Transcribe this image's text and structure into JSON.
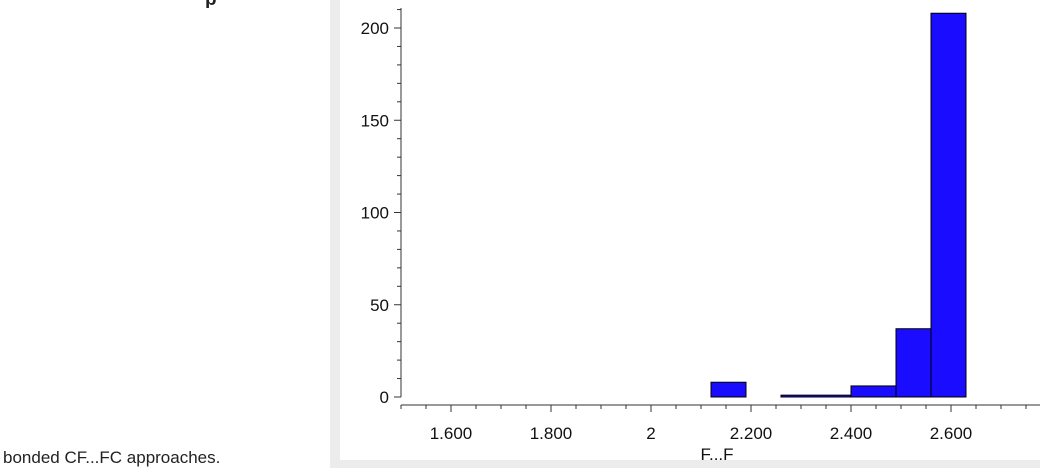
{
  "page": {
    "caption": "bonded CF...FC approaches.",
    "top_bold": "p",
    "top_mid": "(),",
    "top_right": ","
  },
  "colors": {
    "bar_fill": "#1a0dff",
    "bar_stroke": "#000000",
    "axis": "#333333"
  },
  "chart_data": {
    "type": "bar",
    "xlabel": "F...F",
    "ylabel": "",
    "xlim": [
      1.5,
      2.63
    ],
    "ylim": [
      0,
      210
    ],
    "xticks": [
      {
        "value": 1.6,
        "label": "1.600"
      },
      {
        "value": 1.8,
        "label": "1.800"
      },
      {
        "value": 2.0,
        "label": "2"
      },
      {
        "value": 2.2,
        "label": "2.200"
      },
      {
        "value": 2.4,
        "label": "2.400"
      },
      {
        "value": 2.6,
        "label": "2.600"
      }
    ],
    "x_minor_step": 0.05,
    "yticks": [
      0,
      50,
      100,
      150,
      200
    ],
    "y_minor_step": 10,
    "bins": [
      {
        "start": 2.12,
        "end": 2.19,
        "value": 8
      },
      {
        "start": 2.26,
        "end": 2.4,
        "value": 1
      },
      {
        "start": 2.4,
        "end": 2.49,
        "value": 6
      },
      {
        "start": 2.49,
        "end": 2.56,
        "value": 37
      },
      {
        "start": 2.56,
        "end": 2.63,
        "value": 208
      }
    ]
  }
}
